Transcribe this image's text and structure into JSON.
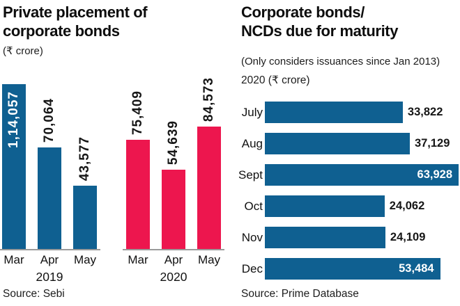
{
  "page": {
    "background": "#ffffff",
    "text_color": "#111111",
    "axis_color": "#9a9a9a"
  },
  "chart_data": [
    {
      "id": "private-placement",
      "type": "bar",
      "orientation": "vertical",
      "title_lines": [
        "Private placement of",
        "corporate bonds"
      ],
      "unit_label": "(₹ crore)",
      "source": "Source: Sebi",
      "ylim": [
        0,
        114057
      ],
      "grid": false,
      "legend": "none",
      "groups": [
        {
          "year": "2019",
          "color": "#0F6091",
          "categories": [
            "Mar",
            "Apr",
            "May"
          ],
          "values": [
            114057,
            70064,
            43577
          ],
          "value_labels": [
            "1,14,057",
            "70,064",
            "43,577"
          ],
          "label_inside": [
            true,
            false,
            false
          ]
        },
        {
          "year": "2020",
          "color": "#ED164E",
          "categories": [
            "Mar",
            "Apr",
            "May"
          ],
          "values": [
            75409,
            54639,
            84573
          ],
          "value_labels": [
            "75,409",
            "54,639",
            "84,573"
          ],
          "label_inside": [
            false,
            false,
            false
          ]
        }
      ]
    },
    {
      "id": "ncd-maturity",
      "type": "bar",
      "orientation": "horizontal",
      "title_lines": [
        "Corporate bonds/",
        "NCDs due for maturity"
      ],
      "subtitle": "(Only considers issuances since Jan 2013)",
      "unit_label": "2020 (₹ crore)",
      "source": "Source: Prime Database",
      "bar_color": "#0F6091",
      "grid": false,
      "legend": "none",
      "categories": [
        "July",
        "Aug",
        "Sept",
        "Oct",
        "Nov",
        "Dec"
      ],
      "values": [
        33822,
        37129,
        63928,
        24062,
        24109,
        53484
      ],
      "value_labels": [
        "33,822",
        "37,129",
        "63,928",
        "24,062",
        "24,109",
        "53,484"
      ],
      "label_inside": [
        false,
        false,
        true,
        false,
        false,
        true
      ],
      "bar_width_pct": [
        71.2,
        74.8,
        100,
        61.8,
        62.2,
        90.5
      ]
    }
  ]
}
